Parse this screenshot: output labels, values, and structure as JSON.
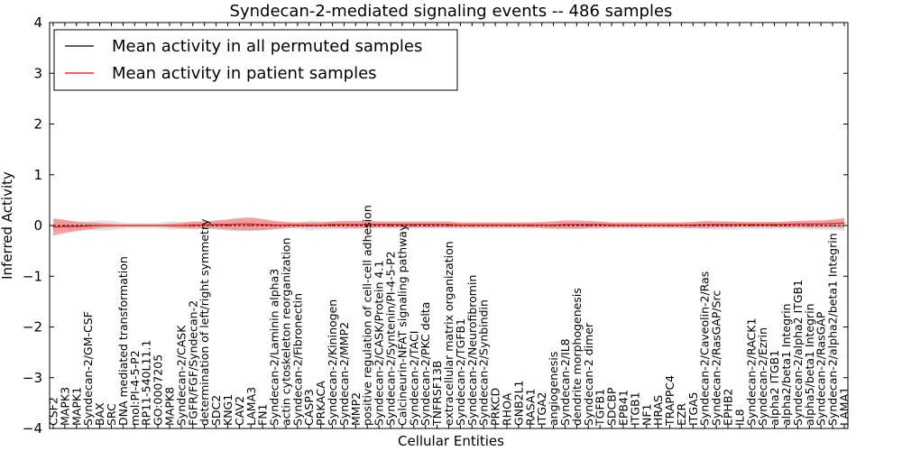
{
  "chart_data": {
    "type": "line",
    "title": "Syndecan-2-mediated signaling events -- 486 samples",
    "xlabel": "Cellular Entities",
    "ylabel": "Inferred Activity",
    "ylim": [
      -4,
      4
    ],
    "yticks": [
      -4,
      -3,
      -2,
      -1,
      0,
      1,
      2,
      3,
      4
    ],
    "ytick_labels": [
      "−4",
      "−3",
      "−2",
      "−1",
      "0",
      "1",
      "2",
      "3",
      "4"
    ],
    "legend_position": "top-left",
    "categories": [
      "CSF2",
      "MAPK3",
      "MAPK1",
      "Syndecan-2/GM-CSF",
      "BAX",
      "SRC",
      "DNA mediated transformation",
      "mol:PI-4-5-P2",
      "RP11-540L11.1",
      "GO:0007205",
      "MAPK8",
      "Syndecan-2/CASK",
      "FGFR/FGF/Syndecan-2",
      "determination of left/right symmetry",
      "SDC2",
      "KNG1",
      "CAV2",
      "LAMA3",
      "FN1",
      "Syndecan-2/Laminin alpha3",
      "actin cytoskeleton reorganization",
      "Syndecan-2/Fibronectin",
      "CASP3",
      "PRKACA",
      "Syndecan-2/Kininogen",
      "Syndecan-2/MMP2",
      "MMP2",
      "positive regulation of cell-cell adhesion",
      "Syndecan-2/CASK/Protein 4.1",
      "Syndecan-2/Syntenin/PI-4-5-P2",
      "Calcineurin-NFAT signaling pathway",
      "Syndecan-2/TACI",
      "Syndecan-2/PKC delta",
      "TNFRSF13B",
      "extracellular matrix organization",
      "Syndecan-2/TGFB1",
      "Syndecan-2/Neurofibromin",
      "Syndecan-2/Synbindin",
      "PRKCD",
      "RHOA",
      "GNB2L1",
      "RASA1",
      "ITGA2",
      "angiogenesis",
      "Syndecan-2/IL8",
      "dendrite morphogenesis",
      "Syndecan-2 dimer",
      "TGFB1",
      "SDCBP",
      "EPB41",
      "ITGB1",
      "NF1",
      "HRAS",
      "TRAPPC4",
      "EZR",
      "ITGA5",
      "Syndecan-2/Caveolin-2/Ras",
      "Syndecan-2/RasGAP/Src",
      "EPHB2",
      "IL8",
      "Syndecan-2/RACK1",
      "Syndecan-2/Ezrin",
      "alpha2 ITGB1",
      "alpha2/beta1 Integrin",
      "Syndecan-2/alpha2 ITGB1",
      "alpha5/beta1 Integrin",
      "Syndecan-2/RasGAP",
      "Syndecan-2/alpha2/beta1 Integrin",
      "LAMA1"
    ],
    "series": [
      {
        "name": "Mean activity in all permuted samples",
        "color": "#000000",
        "band_color": "#c8c8c8",
        "values": [
          0,
          0,
          0,
          0,
          0,
          0,
          0,
          0,
          0,
          0,
          0,
          0,
          0,
          0,
          0,
          0,
          0,
          0,
          0,
          0,
          0,
          0,
          0,
          0,
          0,
          0,
          0,
          0,
          0,
          0,
          0,
          0,
          0,
          0,
          0,
          0,
          0,
          0,
          0,
          0,
          0,
          0,
          0,
          0,
          0,
          0,
          0,
          0,
          0,
          0,
          0,
          0,
          0,
          0,
          0,
          0,
          0,
          0,
          0,
          0,
          0,
          0,
          0,
          0,
          0,
          0,
          0,
          0,
          0
        ],
        "band_halfwidth": [
          0.12,
          0.1,
          0.09,
          0.08,
          0.1,
          0.09,
          0.06,
          0.05,
          0.05,
          0.05,
          0.08,
          0.07,
          0.07,
          0.06,
          0.08,
          0.1,
          0.12,
          0.1,
          0.1,
          0.08,
          0.06,
          0.06,
          0.1,
          0.08,
          0.08,
          0.07,
          0.07,
          0.06,
          0.06,
          0.06,
          0.06,
          0.06,
          0.06,
          0.06,
          0.06,
          0.06,
          0.06,
          0.06,
          0.06,
          0.06,
          0.06,
          0.06,
          0.06,
          0.07,
          0.07,
          0.07,
          0.07,
          0.07,
          0.06,
          0.06,
          0.06,
          0.06,
          0.06,
          0.06,
          0.06,
          0.06,
          0.07,
          0.08,
          0.08,
          0.08,
          0.07,
          0.07,
          0.07,
          0.07,
          0.07,
          0.08,
          0.08,
          0.09,
          0.1
        ]
      },
      {
        "name": "Mean activity in patient samples",
        "color": "#ff0000",
        "band_color": "#f08080",
        "values": [
          -0.03,
          -0.02,
          -0.02,
          -0.01,
          0,
          0,
          0,
          0,
          0,
          0,
          0,
          0,
          0.01,
          0.01,
          0.02,
          0.02,
          0.03,
          0.03,
          0.02,
          0.01,
          0.01,
          0.01,
          0.01,
          0.01,
          0.02,
          0.02,
          0.02,
          0.02,
          0.02,
          0.02,
          0.02,
          0.02,
          0.02,
          0.02,
          0.02,
          0.01,
          0.01,
          0.01,
          0.01,
          0.01,
          0.01,
          0.01,
          0.01,
          0.01,
          0.02,
          0.02,
          0.02,
          0.02,
          0.01,
          0.01,
          0.01,
          0.01,
          0.01,
          0.01,
          0.01,
          0.01,
          0.02,
          0.02,
          0.02,
          0.02,
          0.02,
          0.02,
          0.02,
          0.02,
          0.03,
          0.03,
          0.03,
          0.04,
          0.05
        ],
        "band_halfwidth": [
          0.17,
          0.13,
          0.09,
          0.07,
          0.05,
          0.03,
          0.02,
          0.02,
          0.02,
          0.02,
          0.03,
          0.05,
          0.07,
          0.07,
          0.08,
          0.1,
          0.12,
          0.13,
          0.11,
          0.08,
          0.06,
          0.05,
          0.05,
          0.05,
          0.06,
          0.07,
          0.07,
          0.07,
          0.06,
          0.06,
          0.06,
          0.06,
          0.06,
          0.06,
          0.06,
          0.05,
          0.05,
          0.05,
          0.05,
          0.05,
          0.05,
          0.05,
          0.06,
          0.07,
          0.08,
          0.08,
          0.07,
          0.06,
          0.05,
          0.05,
          0.05,
          0.05,
          0.05,
          0.05,
          0.05,
          0.06,
          0.07,
          0.06,
          0.06,
          0.05,
          0.05,
          0.05,
          0.05,
          0.06,
          0.06,
          0.07,
          0.07,
          0.08,
          0.1
        ]
      }
    ]
  }
}
